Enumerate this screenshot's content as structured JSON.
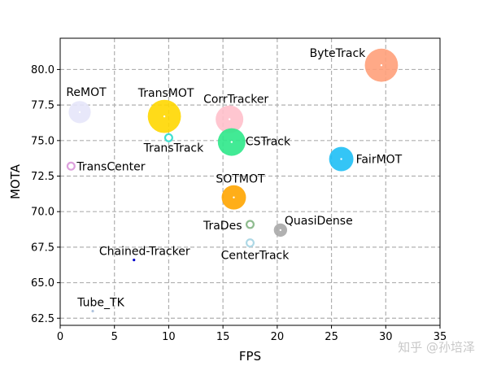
{
  "chart_data": {
    "type": "scatter",
    "xlabel": "FPS",
    "ylabel": "MOTA",
    "xlim": [
      0,
      35
    ],
    "ylim": [
      62.0,
      82.2
    ],
    "xticks": [
      0,
      5,
      10,
      15,
      20,
      25,
      30,
      35
    ],
    "yticks": [
      62.5,
      65.0,
      67.5,
      70.0,
      72.5,
      75.0,
      77.5,
      80.0
    ],
    "xtick_labels": [
      "0",
      "5",
      "10",
      "15",
      "20",
      "25",
      "30",
      "35"
    ],
    "ytick_labels": [
      "62.5",
      "65.0",
      "67.5",
      "70.0",
      "72.5",
      "75.0",
      "77.5",
      "80.0"
    ],
    "grid": true,
    "grid_style": "dashed",
    "points": [
      {
        "label": "ByteTrack",
        "x": 29.6,
        "y": 80.3,
        "color": "#FFA07A",
        "size": 3
      },
      {
        "label": "ReMOT",
        "x": 1.8,
        "y": 77.0,
        "color": "#E6E6FA",
        "size": 2
      },
      {
        "label": "TransMOT",
        "x": 9.6,
        "y": 76.7,
        "color": "#FFD700",
        "size": 3
      },
      {
        "label": "CorrTracker",
        "x": 15.6,
        "y": 76.5,
        "color": "#FFC0CB",
        "size": 2.5
      },
      {
        "label": "TransTrack",
        "x": 10.0,
        "y": 75.2,
        "color": "#40E0D0",
        "size": 1
      },
      {
        "label": "CSTrack",
        "x": 15.8,
        "y": 74.9,
        "color": "#2EE88A",
        "size": 2.5
      },
      {
        "label": "FairMOT",
        "x": 25.9,
        "y": 73.7,
        "color": "#1EBFF5",
        "size": 2.2
      },
      {
        "label": "TransCenter",
        "x": 1.0,
        "y": 73.2,
        "color": "#DDA0DD",
        "size": 1
      },
      {
        "label": "SOTMOT",
        "x": 16.0,
        "y": 71.0,
        "color": "#FFA500",
        "size": 2.2
      },
      {
        "label": "TraDes",
        "x": 17.5,
        "y": 69.1,
        "color": "#8FBC8F",
        "size": 1
      },
      {
        "label": "QuasiDense",
        "x": 20.3,
        "y": 68.7,
        "color": "#A9A9A9",
        "size": 1.2
      },
      {
        "label": "CenterTrack",
        "x": 17.5,
        "y": 67.8,
        "color": "#ADD8E6",
        "size": 1
      },
      {
        "label": "Chained-Tracker",
        "x": 6.8,
        "y": 66.6,
        "color": "#0000CD",
        "size": 0.3
      },
      {
        "label": "Tube_TK",
        "x": 3.0,
        "y": 63.0,
        "color": "#B0C4DE",
        "size": 0.3
      }
    ]
  },
  "watermark": "知乎 @孙培泽"
}
